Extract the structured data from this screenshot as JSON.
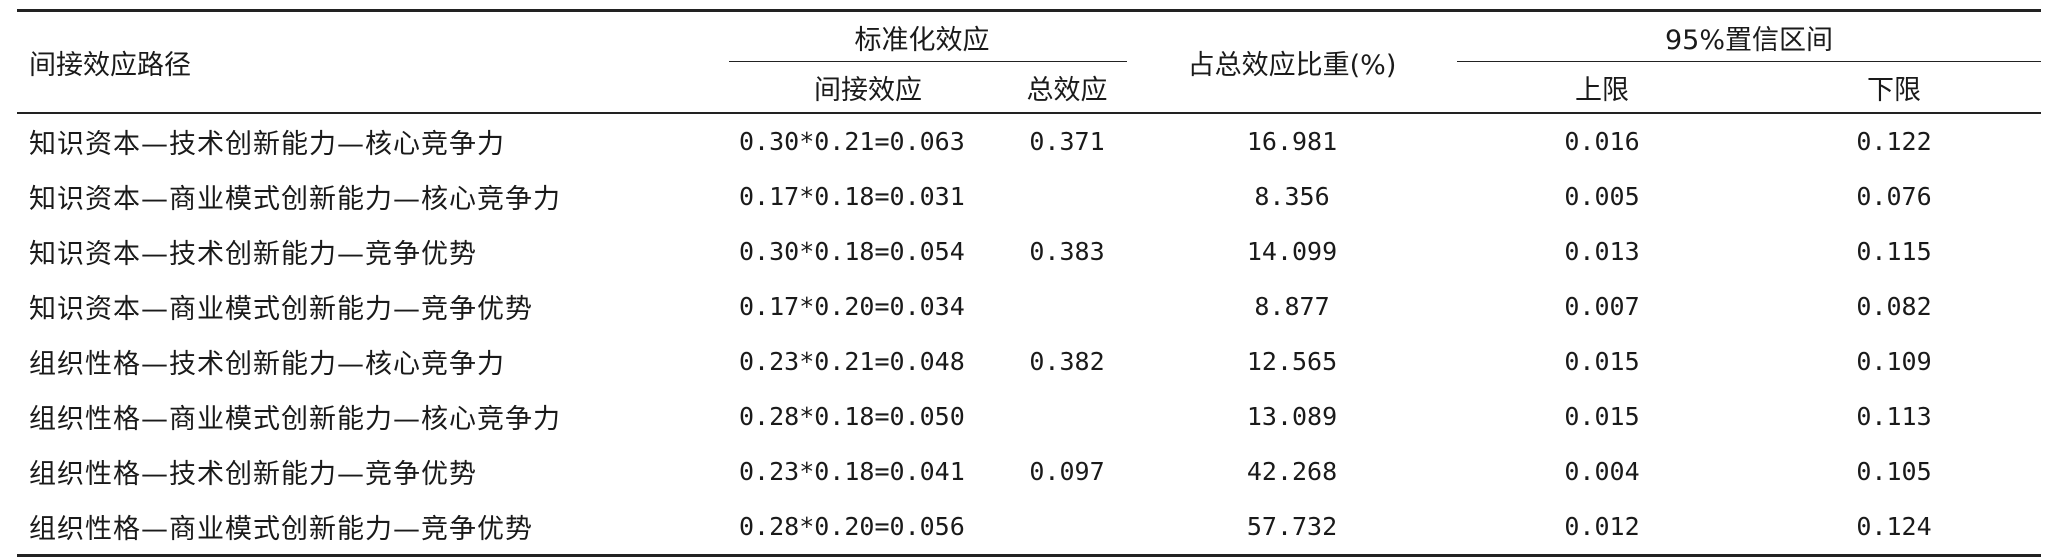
{
  "table": {
    "headers": {
      "path": "间接效应路径",
      "standardized_group": "标准化效应",
      "indirect": "间接效应",
      "total": "总效应",
      "ratio": "占总效应比重(%)",
      "ci_group": "95%置信区间",
      "upper": "上限",
      "lower": "下限"
    },
    "rows": [
      {
        "path": "知识资本—技术创新能力—核心竞争力",
        "indirect": "0.30*0.21=0.063",
        "total": "0.371",
        "ratio": "16.981",
        "upper": "0.016",
        "lower": "0.122"
      },
      {
        "path": "知识资本—商业模式创新能力—核心竞争力",
        "indirect": "0.17*0.18=0.031",
        "total": "",
        "ratio": "8.356",
        "upper": "0.005",
        "lower": "0.076"
      },
      {
        "path": "知识资本—技术创新能力—竞争优势",
        "indirect": "0.30*0.18=0.054",
        "total": "0.383",
        "ratio": "14.099",
        "upper": "0.013",
        "lower": "0.115"
      },
      {
        "path": "知识资本—商业模式创新能力—竞争优势",
        "indirect": "0.17*0.20=0.034",
        "total": "",
        "ratio": "8.877",
        "upper": "0.007",
        "lower": "0.082"
      },
      {
        "path": "组织性格—技术创新能力—核心竞争力",
        "indirect": "0.23*0.21=0.048",
        "total": "0.382",
        "ratio": "12.565",
        "upper": "0.015",
        "lower": "0.109"
      },
      {
        "path": "组织性格—商业模式创新能力—核心竞争力",
        "indirect": "0.28*0.18=0.050",
        "total": "",
        "ratio": "13.089",
        "upper": "0.015",
        "lower": "0.113"
      },
      {
        "path": "组织性格—技术创新能力—竞争优势",
        "indirect": "0.23*0.18=0.041",
        "total": "0.097",
        "ratio": "42.268",
        "upper": "0.004",
        "lower": "0.105"
      },
      {
        "path": "组织性格—商业模式创新能力—竞争优势",
        "indirect": "0.28*0.20=0.056",
        "total": "",
        "ratio": "57.732",
        "upper": "0.012",
        "lower": "0.124"
      }
    ]
  }
}
